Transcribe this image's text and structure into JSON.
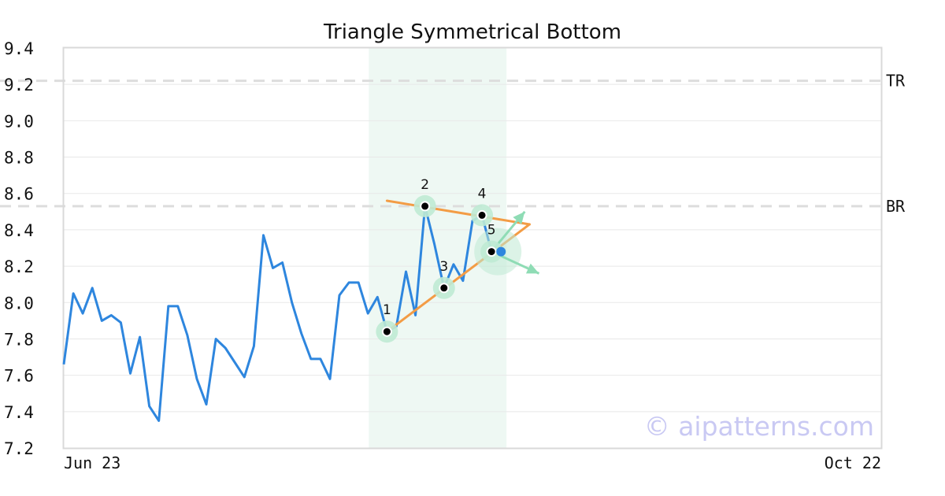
{
  "chart_data": {
    "type": "line",
    "title": "Triangle Symmetrical Bottom",
    "watermark": "© aipatterns.com",
    "ylim": [
      7.2,
      9.4
    ],
    "y_ticks": [
      "9.4",
      "9.2",
      "9.0",
      "8.8",
      "8.6",
      "8.4",
      "8.2",
      "8.0",
      "7.8",
      "7.6",
      "7.4",
      "7.2"
    ],
    "x_tick_labels": [
      "Jun 23",
      "Oct 22"
    ],
    "grid": true,
    "series": [
      {
        "values": [
          7.66,
          8.05,
          7.94,
          8.08,
          7.9,
          7.93,
          7.89,
          7.61,
          7.81,
          7.43,
          7.35,
          7.98,
          7.98,
          7.82,
          7.58,
          7.44,
          7.8,
          7.75,
          7.67,
          7.59,
          7.76,
          8.37,
          8.19,
          8.22,
          8.0,
          7.83,
          7.69,
          7.69,
          7.58,
          8.04,
          8.11,
          8.11,
          7.94,
          8.03,
          7.84,
          7.87,
          8.17,
          7.93,
          8.53,
          8.32,
          8.08,
          8.21,
          8.12,
          8.45,
          8.48,
          8.28,
          8.28
        ]
      }
    ],
    "reference_lines": [
      {
        "label": "TR",
        "value": 9.22
      },
      {
        "label": "BR",
        "value": 8.53
      }
    ],
    "highlight_range": [
      34,
      46
    ],
    "pattern_points": [
      {
        "label": "1",
        "index": 34,
        "value": 7.84
      },
      {
        "label": "2",
        "index": 38,
        "value": 8.53
      },
      {
        "label": "3",
        "index": 40,
        "value": 8.08
      },
      {
        "label": "4",
        "index": 44,
        "value": 8.48
      },
      {
        "label": "5",
        "index": 45,
        "value": 8.28
      }
    ],
    "current_point": {
      "index": 46,
      "value": 8.28
    },
    "trend_lines": [
      {
        "from": [
          34.0,
          7.84
        ],
        "to": [
          49.0,
          8.43
        ]
      },
      {
        "from": [
          34.0,
          8.56
        ],
        "to": [
          49.0,
          8.43
        ]
      }
    ],
    "projection_arrows": [
      {
        "from": [
          45.0,
          8.28
        ],
        "to": [
          48.5,
          8.5
        ]
      },
      {
        "from": [
          45.0,
          8.28
        ],
        "to": [
          50.0,
          8.16
        ]
      }
    ],
    "colors": {
      "line": "#2e86de",
      "trend": "#f39c45",
      "highlight": "#eef8f3",
      "marker_halo": "#bfead4",
      "arrow": "#8fdcb5",
      "refline": "#dddddd",
      "current": "#2e86de"
    }
  }
}
